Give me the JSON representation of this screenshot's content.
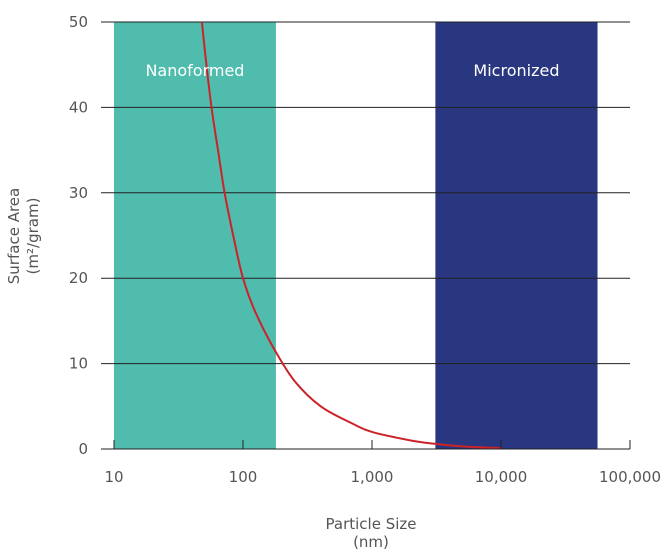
{
  "chart_data": {
    "type": "line",
    "xlabel": "Particle Size",
    "xunit": "(nm)",
    "ylabel": "Surface Area",
    "yunit": "(m²/gram)",
    "xscale": "log",
    "xlim": [
      10,
      100000
    ],
    "ylim": [
      0,
      50
    ],
    "xticks": [
      "10",
      "100",
      "1,000",
      "10,000",
      "100,000"
    ],
    "yticks": [
      "0",
      "10",
      "20",
      "30",
      "40",
      "50"
    ],
    "grid": "horizontal",
    "regions": [
      {
        "label": "Nanoformed",
        "x_start": 10,
        "x_end": 180,
        "color": "#4fbcad"
      },
      {
        "label": "Micronized",
        "x_start": 3100,
        "x_end": 56000,
        "color": "#293680"
      }
    ],
    "series": [
      {
        "color": "#cc2229",
        "points": [
          [
            48,
            50
          ],
          [
            52,
            45
          ],
          [
            57,
            40
          ],
          [
            64,
            35
          ],
          [
            72,
            30
          ],
          [
            84,
            25
          ],
          [
            100,
            20
          ],
          [
            125,
            16
          ],
          [
            170,
            12
          ],
          [
            250,
            8
          ],
          [
            400,
            5
          ],
          [
            700,
            3
          ],
          [
            1000,
            2
          ],
          [
            2000,
            1
          ],
          [
            3100,
            0.6
          ],
          [
            5000,
            0.3
          ],
          [
            10000,
            0.1
          ]
        ]
      }
    ]
  }
}
